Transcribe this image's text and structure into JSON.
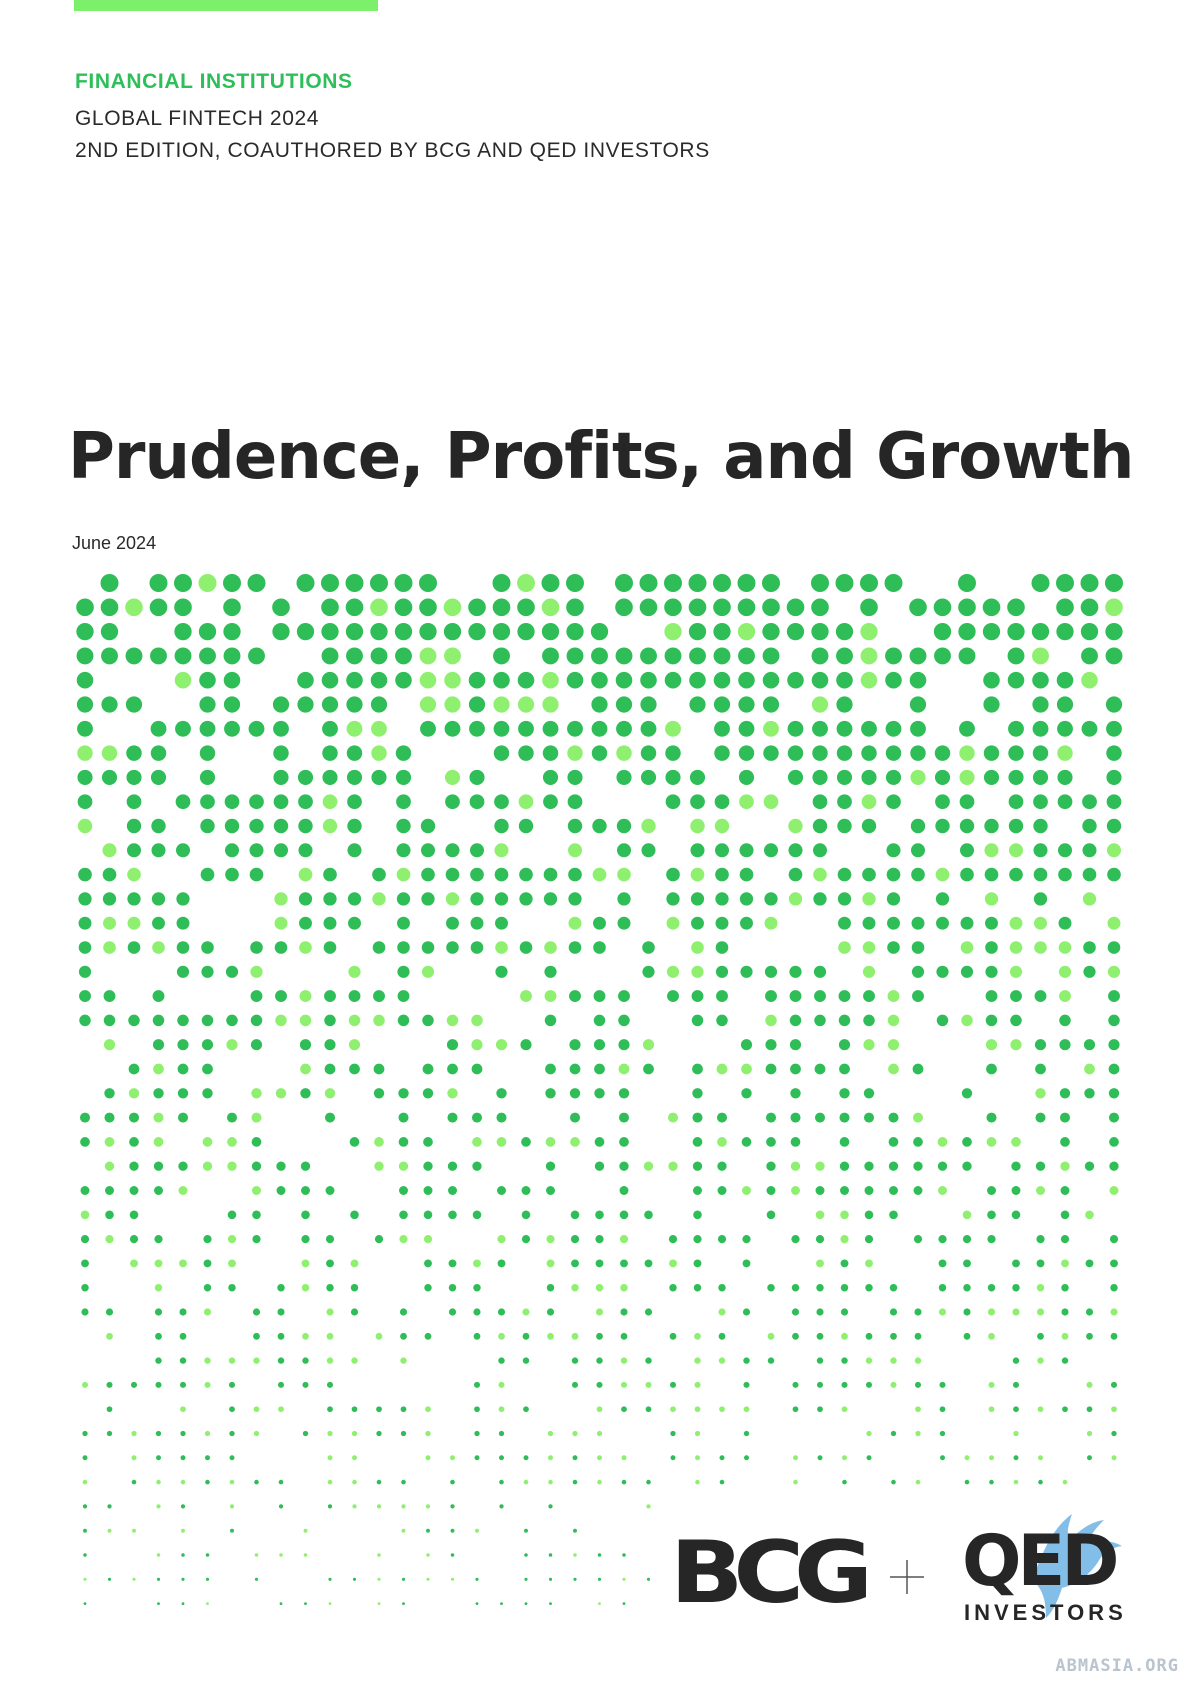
{
  "header": {
    "category": "FINANCIAL INSTITUTIONS",
    "series_line1": "GLOBAL FINTECH 2024",
    "series_line2": "2ND EDITION, COAUTHORED BY BCG AND QED INVESTORS"
  },
  "cover": {
    "title": "Prudence, Profits, and Growth",
    "date": "June 2024"
  },
  "logos": {
    "bcg": "BCG",
    "plus": "+",
    "qed": "QED",
    "qed_subtitle": "INVESTORS"
  },
  "watermark": "ABMASIA.ORG",
  "colors": {
    "accent_green": "#2fbf5a",
    "light_green": "#7cf06b",
    "dot_green": "#2ebd57",
    "dot_light": "#8ff070",
    "text_dark": "#262626",
    "watermark_blue": "#5aa8e0"
  },
  "icons": [
    "dot-pattern-graphic",
    "plus-icon",
    "qed-eagle-icon"
  ]
}
